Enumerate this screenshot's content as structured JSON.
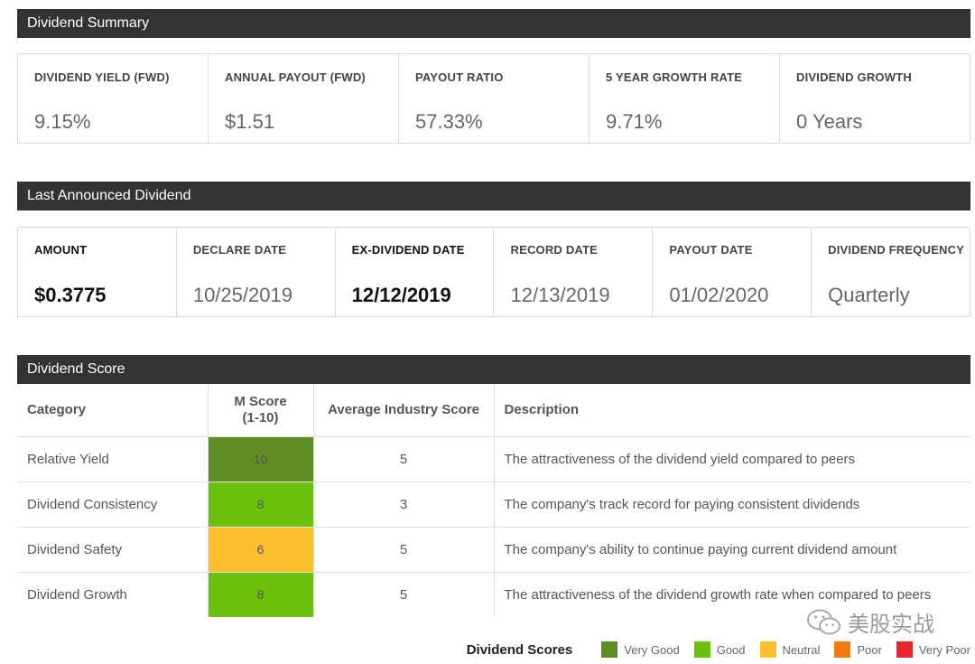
{
  "summary": {
    "title": "Dividend Summary",
    "stats": [
      {
        "label": "DIVIDEND YIELD (FWD)",
        "value": "9.15%"
      },
      {
        "label": "ANNUAL PAYOUT (FWD)",
        "value": "$1.51"
      },
      {
        "label": "PAYOUT RATIO",
        "value": "57.33%"
      },
      {
        "label": "5 YEAR GROWTH RATE",
        "value": "9.71%"
      },
      {
        "label": "DIVIDEND GROWTH",
        "value": "0 Years"
      }
    ]
  },
  "last_dividend": {
    "title": "Last Announced Dividend",
    "stats": [
      {
        "label": "AMOUNT",
        "value": "$0.3775"
      },
      {
        "label": "DECLARE DATE",
        "value": "10/25/2019"
      },
      {
        "label": "EX-DIVIDEND DATE",
        "value": "12/12/2019"
      },
      {
        "label": "RECORD DATE",
        "value": "12/13/2019"
      },
      {
        "label": "PAYOUT DATE",
        "value": "01/02/2020"
      },
      {
        "label": "DIVIDEND FREQUENCY",
        "value": "Quarterly"
      }
    ]
  },
  "score": {
    "title": "Dividend Score",
    "headers": {
      "category": "Category",
      "m_score_line1": "M Score",
      "m_score_line2": "(1-10)",
      "avg": "Average Industry Score",
      "description": "Description"
    },
    "rows": [
      {
        "category": "Relative Yield",
        "m_score": "10",
        "avg": "5",
        "description": "The attractiveness of the dividend yield compared to peers",
        "color": "#5e8e23"
      },
      {
        "category": "Dividend Consistency",
        "m_score": "8",
        "avg": "3",
        "description": "The company's track record for paying consistent dividends",
        "color": "#6cc10a"
      },
      {
        "category": "Dividend Safety",
        "m_score": "6",
        "avg": "5",
        "description": "The company's ability to continue paying current dividend amount",
        "color": "#fbbf2e"
      },
      {
        "category": "Dividend Growth",
        "m_score": "8",
        "avg": "5",
        "description": "The attractiveness of the dividend growth rate when compared to peers",
        "color": "#6cc10a"
      }
    ]
  },
  "legend": {
    "title": "Dividend Scores",
    "items": [
      {
        "label": "Very Good",
        "color": "#5e8e23"
      },
      {
        "label": "Good",
        "color": "#6cc10a"
      },
      {
        "label": "Neutral",
        "color": "#fbbf2e"
      },
      {
        "label": "Poor",
        "color": "#f47a0c"
      },
      {
        "label": "Very Poor",
        "color": "#e8242e"
      }
    ]
  },
  "watermark": {
    "text": "美股实战",
    "icon": "wechat-icon"
  }
}
